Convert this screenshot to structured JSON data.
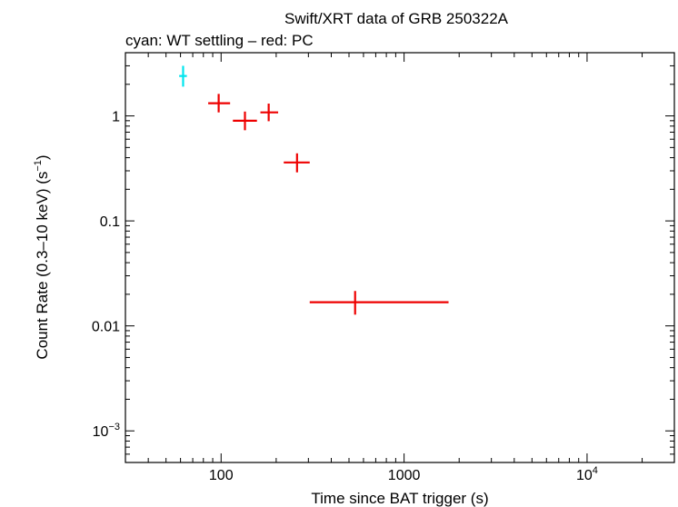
{
  "chart_data": {
    "type": "scatter",
    "title": "Swift/XRT data of GRB 250322A",
    "subtitle": "cyan: WT settling – red: PC",
    "xlabel": "Time since BAT trigger (s)",
    "ylabel_main": "Count Rate (0.3–10 keV) (s",
    "ylabel_sup": "−1",
    "ylabel_close": ")",
    "x_scale": "log",
    "y_scale": "log",
    "xlim": [
      30,
      30000
    ],
    "ylim": [
      0.0005,
      4
    ],
    "grid": false,
    "x_ticks": [
      {
        "value": 100,
        "label": "100",
        "sup": ""
      },
      {
        "value": 1000,
        "label": "1000",
        "sup": ""
      },
      {
        "value": 10000,
        "label": "10",
        "sup": "4"
      }
    ],
    "y_ticks": [
      {
        "value": 1,
        "label": "1",
        "sup": ""
      },
      {
        "value": 0.1,
        "label": "0.1",
        "sup": ""
      },
      {
        "value": 0.01,
        "label": "0.01",
        "sup": ""
      },
      {
        "value": 0.001,
        "label": "10",
        "sup": "−3"
      }
    ],
    "series": [
      {
        "mode": "WT settling",
        "color": "#00e5ee",
        "points": [
          {
            "x": 62,
            "xlo": 59,
            "xhi": 65,
            "y": 2.4,
            "ylo": 1.9,
            "yhi": 3.0
          }
        ]
      },
      {
        "mode": "PC",
        "color": "#ee0000",
        "points": [
          {
            "x": 97,
            "xlo": 85,
            "xhi": 112,
            "y": 1.32,
            "ylo": 1.08,
            "yhi": 1.62
          },
          {
            "x": 135,
            "xlo": 116,
            "xhi": 157,
            "y": 0.9,
            "ylo": 0.73,
            "yhi": 1.1
          },
          {
            "x": 182,
            "xlo": 164,
            "xhi": 205,
            "y": 1.08,
            "ylo": 0.89,
            "yhi": 1.31
          },
          {
            "x": 260,
            "xlo": 220,
            "xhi": 305,
            "y": 0.36,
            "ylo": 0.29,
            "yhi": 0.44
          },
          {
            "x": 540,
            "xlo": 305,
            "xhi": 1750,
            "y": 0.0168,
            "ylo": 0.0128,
            "yhi": 0.0215
          }
        ]
      }
    ]
  }
}
